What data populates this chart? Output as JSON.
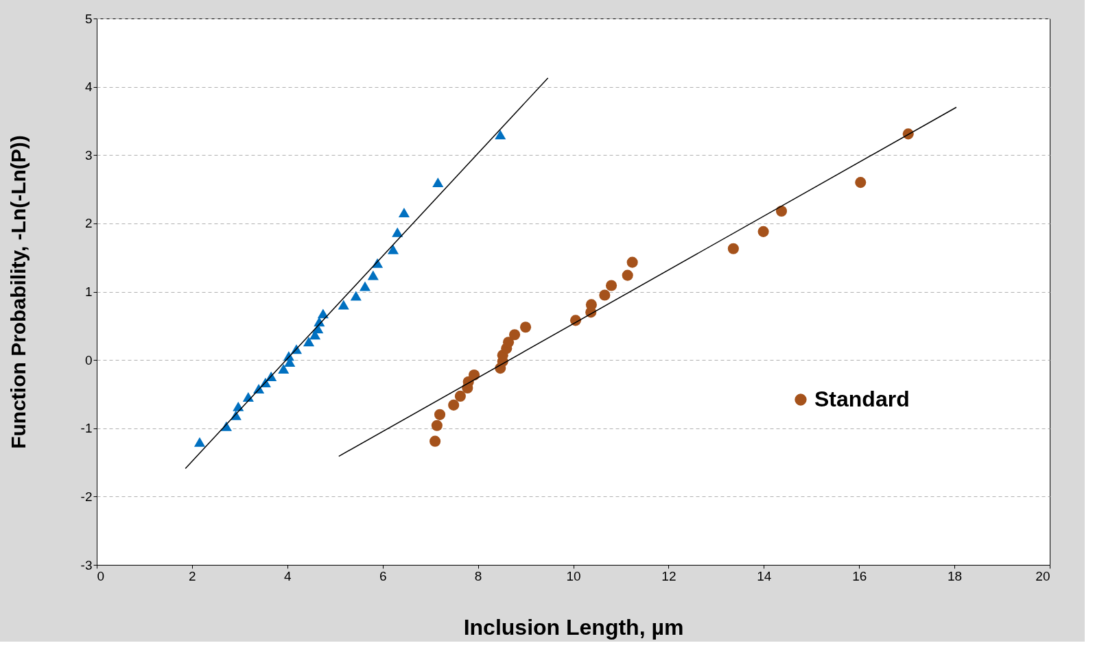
{
  "chart_data": {
    "type": "scatter",
    "xlabel": "Inclusion Length, µm",
    "ylabel": "Function Probability, -Ln(-Ln(P))",
    "xlim": [
      0,
      20
    ],
    "xticks": [
      0,
      2,
      4,
      6,
      8,
      10,
      12,
      14,
      16,
      18,
      20
    ],
    "ylim": [
      -3,
      5
    ],
    "yticks": [
      -3,
      -2,
      -1,
      0,
      1,
      2,
      3,
      4,
      5
    ],
    "grid": "y",
    "legend": "right",
    "series": [
      {
        "marker": "triangle",
        "color": "#0070c0",
        "x": [
          2.16,
          2.72,
          2.92,
          2.97,
          3.18,
          3.4,
          3.54,
          3.66,
          3.92,
          4.05,
          4.03,
          4.19,
          4.45,
          4.58,
          4.64,
          4.67,
          4.75,
          5.18,
          5.44,
          5.63,
          5.8,
          5.89,
          6.22,
          6.31,
          6.45,
          7.16,
          8.47
        ],
        "values": [
          -1.2,
          -0.97,
          -0.81,
          -0.68,
          -0.54,
          -0.42,
          -0.33,
          -0.24,
          -0.13,
          -0.03,
          0.06,
          0.16,
          0.27,
          0.37,
          0.46,
          0.56,
          0.68,
          0.81,
          0.94,
          1.08,
          1.24,
          1.42,
          1.62,
          1.87,
          2.16,
          2.6,
          3.3
        ]
      },
      {
        "marker": "circle",
        "name": "Standard",
        "color": "#a5521b",
        "x": [
          7.1,
          7.14,
          7.2,
          7.49,
          7.63,
          7.78,
          7.8,
          7.92,
          8.47,
          8.52,
          8.52,
          8.6,
          8.64,
          8.77,
          9.0,
          10.05,
          10.37,
          10.38,
          10.66,
          10.8,
          11.14,
          11.24,
          13.36,
          13.99,
          14.37,
          16.03,
          17.03
        ],
        "values": [
          -1.19,
          -0.96,
          -0.8,
          -0.66,
          -0.53,
          -0.41,
          -0.32,
          -0.22,
          -0.12,
          -0.02,
          0.07,
          0.17,
          0.26,
          0.37,
          0.48,
          0.58,
          0.7,
          0.81,
          0.95,
          1.09,
          1.24,
          1.43,
          1.63,
          1.88,
          2.18,
          2.6,
          3.31
        ]
      },
      {
        "type": "line",
        "color": "#000000",
        "line_style": "solid",
        "x": [
          1.86,
          9.47
        ],
        "values": [
          -1.59,
          4.13
        ]
      },
      {
        "type": "line",
        "color": "#000000",
        "line_style": "solid",
        "x": [
          5.08,
          18.04
        ],
        "values": [
          -1.41,
          3.7
        ]
      }
    ]
  }
}
